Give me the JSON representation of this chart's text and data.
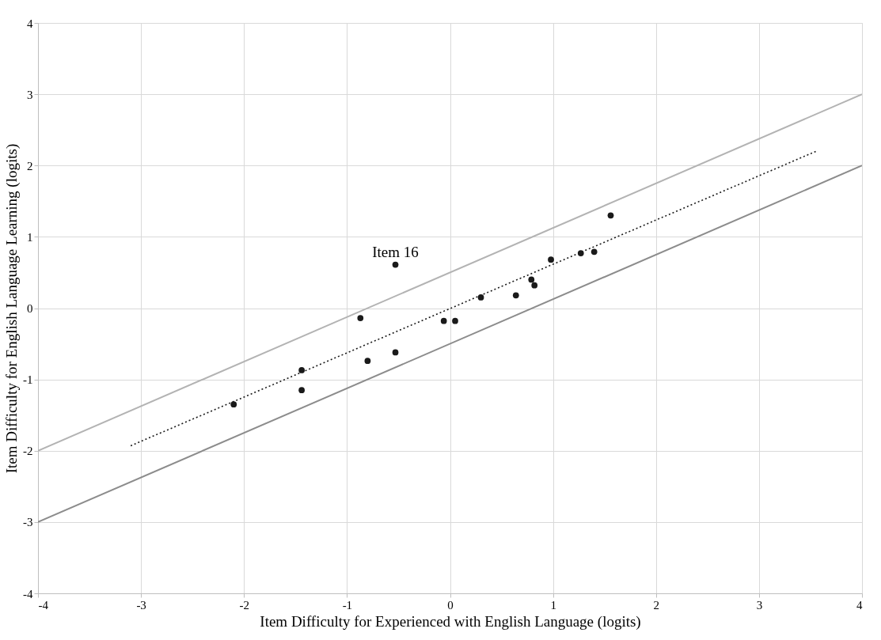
{
  "chart_data": {
    "type": "scatter",
    "xlabel": "Item Difficulty for Experienced with English Language (logits)",
    "ylabel": "Item Difficulty for English Language Learning (logits)",
    "xlim": [
      -4,
      4
    ],
    "ylim": [
      -4,
      4
    ],
    "xticks": [
      -4,
      -3,
      -2,
      -1,
      0,
      1,
      2,
      3,
      4
    ],
    "yticks": [
      -4,
      -3,
      -2,
      -1,
      0,
      1,
      2,
      3,
      4
    ],
    "grid": true,
    "series": [
      {
        "type": "line",
        "color": "#b3b3b3",
        "line_style": "solid",
        "x": [
          -4,
          4
        ],
        "values": [
          -2,
          3
        ]
      },
      {
        "type": "line",
        "color": "#8c8c8c",
        "line_style": "solid",
        "x": [
          -4,
          4
        ],
        "values": [
          -3,
          2
        ]
      },
      {
        "type": "line",
        "color": "#1a1a1a",
        "line_style": "dotted",
        "x": [
          -3.1,
          3.57
        ],
        "values": [
          -1.93,
          2.21
        ]
      },
      {
        "color": "#1a1a1a",
        "marker": "circle",
        "x": [
          -2.1,
          -1.44,
          -1.44,
          -0.87,
          -0.8,
          -0.53,
          -0.53,
          -0.06,
          0.05,
          0.3,
          0.64,
          0.79,
          0.82,
          0.98,
          1.27,
          1.4,
          1.56
        ],
        "values": [
          -1.35,
          -0.87,
          -1.15,
          -0.14,
          -0.74,
          0.61,
          -0.62,
          -0.18,
          -0.18,
          0.15,
          0.18,
          0.4,
          0.32,
          0.68,
          0.77,
          0.79,
          1.3
        ]
      }
    ],
    "annotations": [
      {
        "text": "Item 16",
        "x": -0.53,
        "y": 0.61
      }
    ]
  }
}
